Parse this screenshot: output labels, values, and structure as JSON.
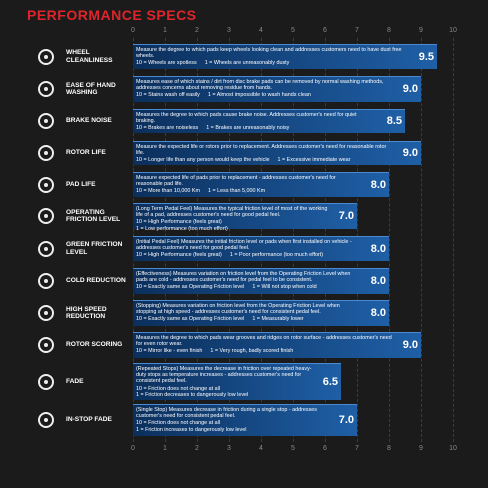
{
  "chart_data": {
    "type": "bar",
    "orientation": "horizontal",
    "title": "PERFORMANCE SPECS",
    "categories": [
      "WHEEL CLEANLINESS",
      "EASE OF HAND WASHING",
      "BRAKE NOISE",
      "ROTOR LIFE",
      "PAD LIFE",
      "OPERATING FRICTION LEVEL",
      "GREEN FRICTION LEVEL",
      "COLD REDUCTION",
      "HIGH SPEED REDUCTION",
      "ROTOR SCORING",
      "FADE",
      "IN-STOP FADE"
    ],
    "values": [
      9.5,
      9,
      8.5,
      9,
      8,
      7,
      8,
      8,
      8,
      9,
      6.5,
      7
    ],
    "value_labels": [
      "9.5",
      "9.0",
      "8.5",
      "9.0",
      "8.0",
      "7.0",
      "8.0",
      "8.0",
      "8.0",
      "9.0",
      "6.5",
      "7.0"
    ],
    "descriptions": [
      "Measure the degree to which pads keep wheels looking clean and addresses customers need to have dust free wheels.",
      "Measures ease of which stains / dirt from disc brake pads can be removed by normal washing methods, addresses concerns about removing residue from hands.",
      "Measures the degree to which pads cause brake noise. Addresses customer's need for quiet braking.",
      "Measure the expected life or rotors prior to replacement. Addresses customer's need for reasonable rotor life.",
      "Measure expected life of pads prior to replacement - addresses customer's need for reasonable pad life.",
      "(Long Term Pedal Feel) Measures the typical friction level of most of the working life of a pad, addresses customer's need for good pedal feel.",
      "(Initial Pedal Feel) Measures the initial friction level or pads when first installed on vehicle - addresses customer's need for good pedal feel.",
      "(Effectiveness) Measures variation on friction level from the Operating Friction Level when pads are cold - addresses customer's need for pedal feel to be consistent.",
      "(Stopping) Measures variation on friction level from the Operating Friction Level when stopping at high speed - addresses customer's need for consistent pedal feel.",
      "Measures the degree to which pads wear grooves and ridges on rotor surface - addresses customer's need for even rotor wear.",
      "(Repeated Stops) Measures the decrease in friction over repeated heavy-duty stops as temperature increases - addresses customer's need for consistent pedal feel.",
      "(Single Stop) Measures decrease in friction during a single stop - addresses customer's need for consistent pedal feel."
    ],
    "scales": [
      [
        "10 = Wheels are spotless",
        "1 = Wheels are unreasonably dusty"
      ],
      [
        "10 = Stains wash off easily",
        "1 = Almost impossible to wash hands clean"
      ],
      [
        "10 = Brakes are noiseless",
        "1 = Brakes are unreasonably noisy"
      ],
      [
        "10 = Longer life than any person would keep the vehicle",
        "1 = Excessive immediate wear"
      ],
      [
        "10 = More than 10,000 Km",
        "1 = Less than 5,000 Km"
      ],
      [
        "10 = High Performance (feels great)",
        "1 = Low performance (too much effort)"
      ],
      [
        "10 = High Performance (feels great)",
        "1 = Poor performance (too much effort)"
      ],
      [
        "10 = Exactly same as Operating Friction level",
        "1 = Will not stop when cold"
      ],
      [
        "10 = Exactly same as Operating Friction level",
        "1 = Measurably lower"
      ],
      [
        "10 = Mirror like - even finish",
        "1 = Very rough, badly scored finish"
      ],
      [
        "10 = Friction does not change at all",
        "1 = Friction decreases to dangerously low level"
      ],
      [
        "10 = Friction does not change at all",
        "1 = Friction increases to dangerously low level"
      ]
    ],
    "color": "#1f5fa6",
    "title_color": "#e0242b",
    "xlim": [
      0,
      10
    ],
    "xticks": [
      0,
      1,
      2,
      3,
      4,
      5,
      6,
      7,
      8,
      9,
      10
    ],
    "grid": true
  }
}
